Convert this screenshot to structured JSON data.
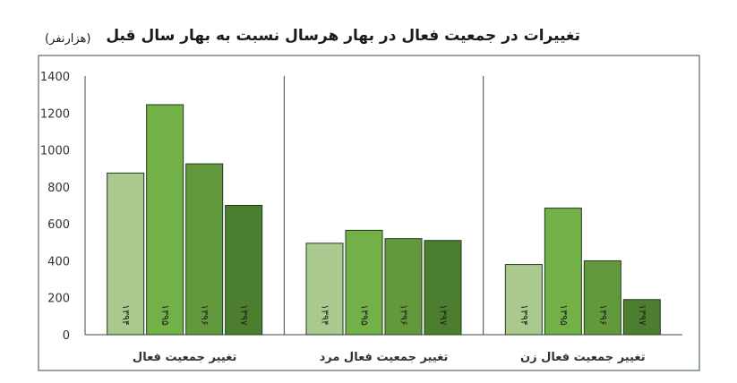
{
  "title": "تغییرات در جمعیت فعال در بهار هرسال نسبت به بهار سال قبل",
  "unit_label": "(هزارنفر)",
  "colors": [
    "#a9c98f",
    "#72b048",
    "#63993d",
    "#4c7e2f"
  ],
  "chart_data": {
    "type": "bar",
    "ylim": [
      0,
      1400
    ],
    "yticks": [
      "0",
      "200",
      "400",
      "600",
      "800",
      "1000",
      "1200",
      "1400"
    ],
    "series_labels": [
      "۱۳۹۴",
      "۱۳۹۵",
      "۱۳۹۶",
      "۱۳۹۷"
    ],
    "groups": [
      {
        "label": "تغییر جمعیت فعال",
        "values": [
          875,
          1245,
          925,
          700
        ]
      },
      {
        "label": "تغییر جمعیت فعال مرد",
        "values": [
          495,
          565,
          520,
          510
        ]
      },
      {
        "label": "تغییر جمعیت فعال زن",
        "values": [
          380,
          685,
          400,
          190
        ]
      }
    ],
    "grid": false
  }
}
